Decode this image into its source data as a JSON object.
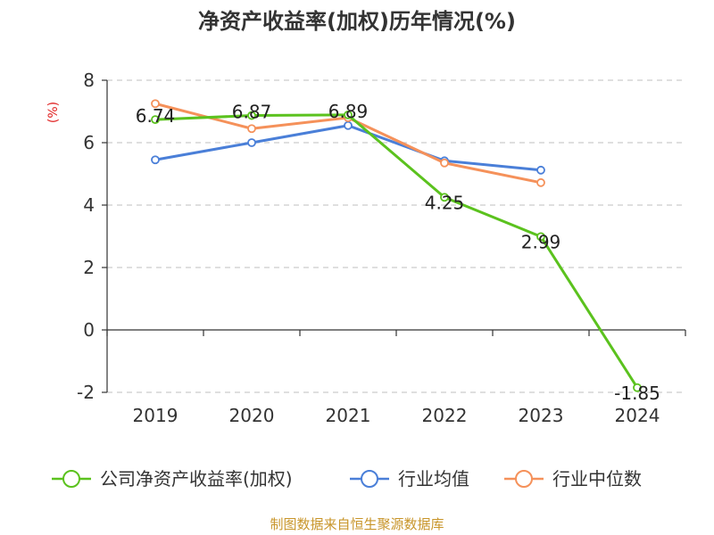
{
  "title": "净资产收益率(加权)历年情况(%)",
  "source": "制图数据来自恒生聚源数据库",
  "chart_data": {
    "type": "line",
    "title": "净资产收益率(加权)历年情况(%)",
    "ylabel": "(%)",
    "xlabel": "",
    "categories": [
      "2019",
      "2020",
      "2021",
      "2022",
      "2023",
      "2024"
    ],
    "ylim": [
      -2,
      8
    ],
    "yticks": [
      8,
      6,
      4,
      2,
      0,
      -2
    ],
    "grid": true,
    "legend_position": "bottom",
    "series": [
      {
        "name": "公司净资产收益率(加权)",
        "color": "#5bc21e",
        "values": [
          6.74,
          6.87,
          6.89,
          4.25,
          2.99,
          -1.85
        ],
        "labels": [
          "6.74",
          "6.87",
          "6.89",
          "4.25",
          "2.99",
          "-1.85"
        ]
      },
      {
        "name": "行业均值",
        "color": "#4a7fd8",
        "values": [
          5.45,
          6.0,
          6.55,
          5.42,
          5.12,
          null
        ]
      },
      {
        "name": "行业中位数",
        "color": "#f5915a",
        "values": [
          7.25,
          6.45,
          6.8,
          5.35,
          4.72,
          null
        ]
      }
    ]
  }
}
